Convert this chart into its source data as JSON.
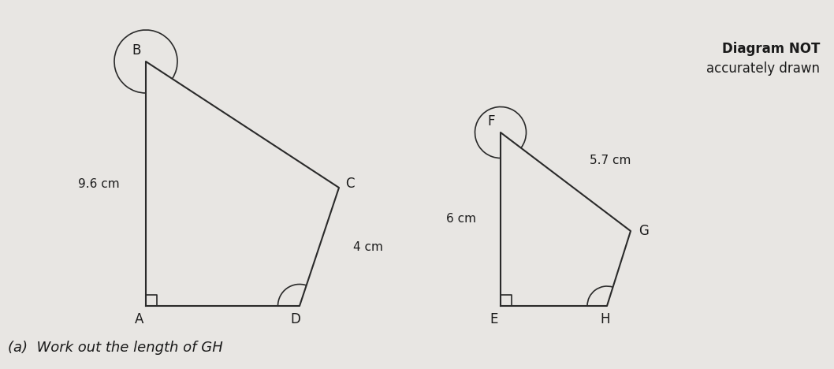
{
  "background_color": "#e8e6e3",
  "quad1": {
    "label_A": "A",
    "label_B": "B",
    "label_C": "C",
    "label_D": "D",
    "side_AB_label": "9.6 cm",
    "side_CD_label": "4 cm"
  },
  "quad2": {
    "label_E": "E",
    "label_F": "F",
    "label_G": "G",
    "label_H": "H",
    "side_EF_label": "6 cm",
    "side_FG_label": "5.7 cm"
  },
  "note_bold": "Diagram NOT",
  "note_normal": "accurately drawn",
  "question_text": "(a)  Work out the length of GH",
  "line_color": "#2a2a2a",
  "text_color": "#1a1a1a"
}
